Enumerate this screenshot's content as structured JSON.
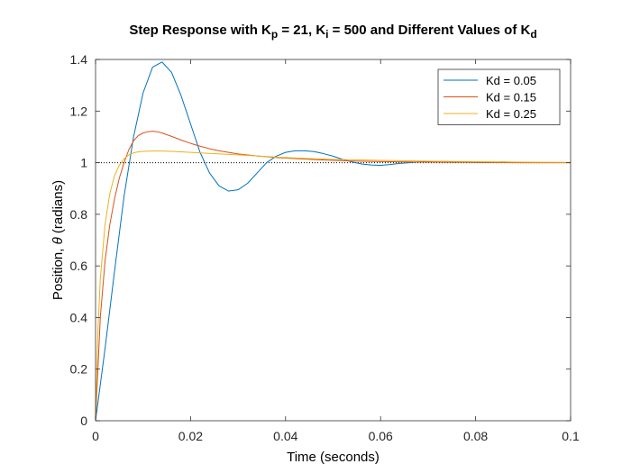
{
  "chart_data": {
    "type": "line",
    "title": {
      "parts": [
        {
          "text": "Step Response with K",
          "sub": false
        },
        {
          "text": "p",
          "sub": true
        },
        {
          "text": " = 21, K",
          "sub": false
        },
        {
          "text": "i",
          "sub": true
        },
        {
          "text": " = 500 and Different Values of K",
          "sub": false
        },
        {
          "text": "d",
          "sub": true
        }
      ]
    },
    "xlabel": "Time (seconds)",
    "ylabel": {
      "before": "Position, ",
      "symbol": "θ",
      "after": " (radians)"
    },
    "xlim": [
      0,
      0.1
    ],
    "ylim": [
      0,
      1.4
    ],
    "xticks": [
      0,
      0.02,
      0.04,
      0.06,
      0.08,
      0.1
    ],
    "xtick_labels": [
      "0",
      "0.02",
      "0.04",
      "0.06",
      "0.08",
      "0.1"
    ],
    "yticks": [
      0,
      0.2,
      0.4,
      0.6,
      0.8,
      1,
      1.2,
      1.4
    ],
    "ytick_labels": [
      "0",
      "0.2",
      "0.4",
      "0.6",
      "0.8",
      "1",
      "1.2",
      "1.4"
    ],
    "grid": false,
    "legend_position": "top-right",
    "reference_line": {
      "y": 1,
      "style": "dotted",
      "color": "#000000"
    },
    "series": [
      {
        "name": "Kd = 0.05",
        "color": "#0072BD",
        "x": [
          0,
          0.002,
          0.004,
          0.006,
          0.008,
          0.01,
          0.012,
          0.014,
          0.016,
          0.018,
          0.02,
          0.022,
          0.024,
          0.026,
          0.028,
          0.03,
          0.032,
          0.034,
          0.036,
          0.038,
          0.04,
          0.042,
          0.044,
          0.046,
          0.048,
          0.05,
          0.052,
          0.054,
          0.056,
          0.058,
          0.06,
          0.062,
          0.064,
          0.066,
          0.068,
          0.07,
          0.072,
          0.074,
          0.076,
          0.078,
          0.08,
          0.082,
          0.084,
          0.086,
          0.088
        ],
        "y": [
          0,
          0.28,
          0.58,
          0.87,
          1.1,
          1.27,
          1.37,
          1.39,
          1.35,
          1.26,
          1.15,
          1.04,
          0.96,
          0.91,
          0.89,
          0.895,
          0.92,
          0.96,
          1.0,
          1.025,
          1.04,
          1.046,
          1.046,
          1.043,
          1.035,
          1.025,
          1.013,
          1.003,
          0.995,
          0.991,
          0.99,
          0.993,
          0.997,
          1.0,
          1.003,
          1.005,
          1.005,
          1.004,
          1.003,
          1.002,
          1.001,
          1.001,
          1.002,
          1.003,
          1.001
        ]
      },
      {
        "name": "Kd = 0.15",
        "color": "#D95319",
        "x": [
          0,
          0.001,
          0.002,
          0.003,
          0.004,
          0.005,
          0.006,
          0.007,
          0.008,
          0.009,
          0.01,
          0.011,
          0.012,
          0.013,
          0.014,
          0.016,
          0.018,
          0.02,
          0.022,
          0.024,
          0.026,
          0.028,
          0.03,
          0.034,
          0.038,
          0.042,
          0.046,
          0.05,
          0.055,
          0.06,
          0.07,
          0.08,
          0.09,
          0.1
        ],
        "y": [
          0,
          0.4,
          0.62,
          0.76,
          0.86,
          0.94,
          1.0,
          1.05,
          1.085,
          1.105,
          1.115,
          1.12,
          1.122,
          1.12,
          1.115,
          1.102,
          1.088,
          1.075,
          1.064,
          1.054,
          1.046,
          1.04,
          1.034,
          1.026,
          1.02,
          1.016,
          1.012,
          1.009,
          1.006,
          1.004,
          1.002,
          1.001,
          1.0,
          1.0
        ]
      },
      {
        "name": "Kd = 0.25",
        "color": "#EDB120",
        "x": [
          0,
          0.0005,
          0.001,
          0.002,
          0.003,
          0.004,
          0.005,
          0.006,
          0.007,
          0.008,
          0.009,
          0.01,
          0.012,
          0.014,
          0.016,
          0.018,
          0.02,
          0.024,
          0.028,
          0.032,
          0.036,
          0.04,
          0.045,
          0.05,
          0.06,
          0.07,
          0.08,
          0.09,
          0.1
        ],
        "y": [
          0,
          0.35,
          0.55,
          0.76,
          0.88,
          0.95,
          0.99,
          1.015,
          1.03,
          1.038,
          1.042,
          1.044,
          1.045,
          1.045,
          1.044,
          1.042,
          1.04,
          1.036,
          1.032,
          1.028,
          1.024,
          1.02,
          1.016,
          1.013,
          1.009,
          1.006,
          1.004,
          1.002,
          1.001
        ]
      }
    ]
  }
}
